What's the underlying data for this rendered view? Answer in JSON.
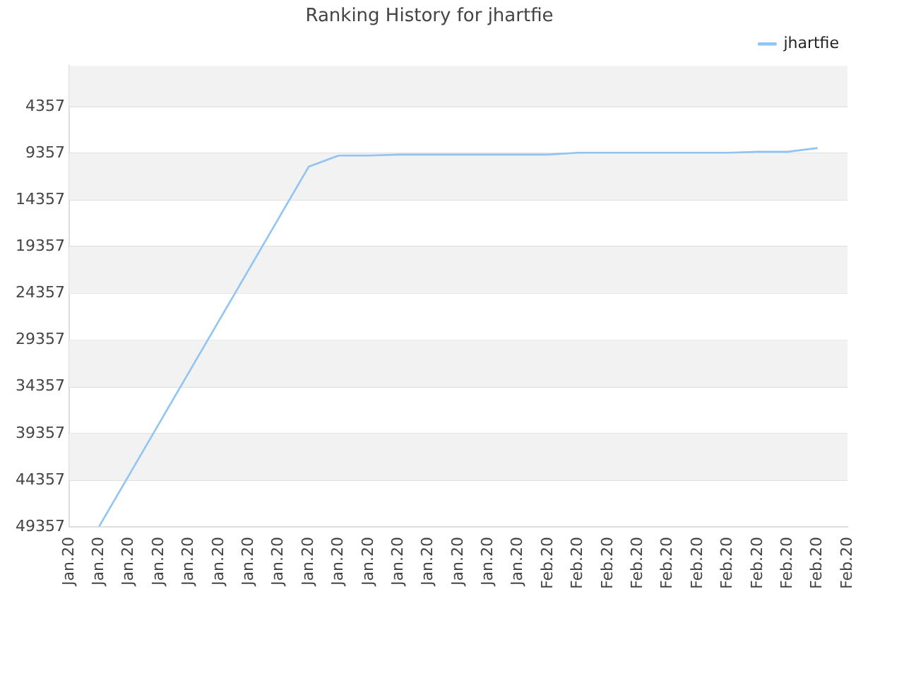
{
  "chart_data": {
    "type": "line",
    "title": "Ranking History for jhartfie",
    "categories": [
      "Jan.20",
      "Jan.20",
      "Jan.20",
      "Jan.20",
      "Jan.20",
      "Jan.20",
      "Jan.20",
      "Jan.20",
      "Jan.20",
      "Jan.20",
      "Jan.20",
      "Jan.20",
      "Jan.20",
      "Jan.20",
      "Jan.20",
      "Jan.20",
      "Feb.20",
      "Feb.20",
      "Feb.20",
      "Feb.20",
      "Feb.20",
      "Feb.20",
      "Feb.20",
      "Feb.20",
      "Feb.20",
      "Feb.20",
      "Feb.20"
    ],
    "series": [
      {
        "name": "jhartfie",
        "color": "#90c4f4",
        "values": [
          null,
          49300,
          43800,
          38300,
          32800,
          27300,
          21800,
          16300,
          10800,
          9600,
          9600,
          9500,
          9500,
          9500,
          9500,
          9500,
          9500,
          9300,
          9300,
          9300,
          9300,
          9300,
          9300,
          9200,
          9200,
          8800,
          null
        ]
      }
    ],
    "ylim": [
      49357,
      0
    ],
    "yticks": [
      4357,
      9357,
      14357,
      19357,
      24357,
      29357,
      34357,
      39357,
      44357,
      49357
    ],
    "grid": "y",
    "legend": "top right",
    "marker": "none",
    "line_style": "solid"
  }
}
